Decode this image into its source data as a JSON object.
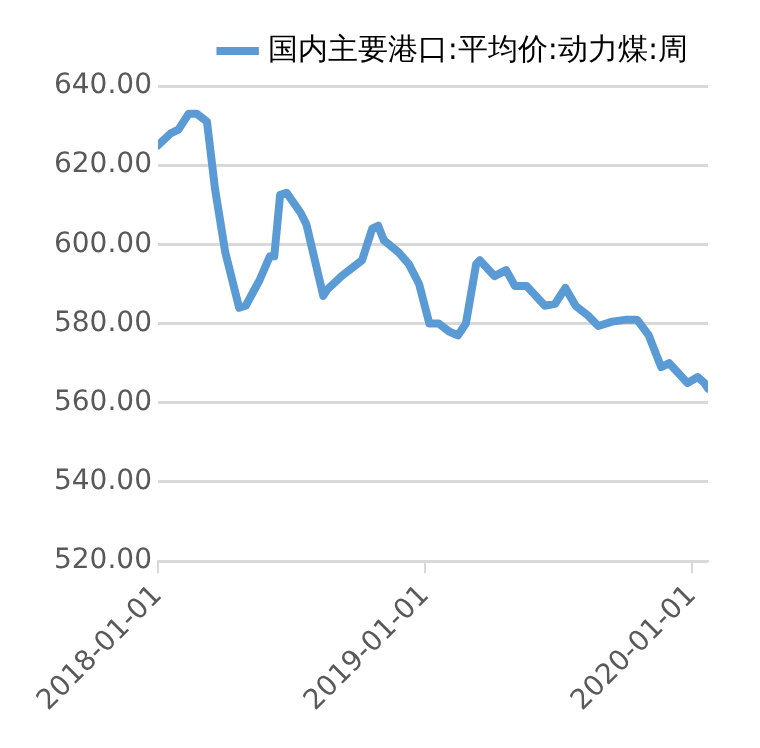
{
  "chart_data": {
    "type": "line",
    "x": [
      "2018-01-01",
      "2018-01-18",
      "2018-01-29",
      "2018-02-12",
      "2018-02-23",
      "2018-03-09",
      "2018-03-20",
      "2018-04-03",
      "2018-04-22",
      "2018-05-01",
      "2018-05-20",
      "2018-06-03",
      "2018-06-09",
      "2018-06-17",
      "2018-06-26",
      "2018-07-15",
      "2018-07-23",
      "2018-08-15",
      "2018-08-20",
      "2018-09-09",
      "2018-10-07",
      "2018-10-21",
      "2018-10-29",
      "2018-11-06",
      "2018-11-26",
      "2018-12-10",
      "2018-12-24",
      "2019-01-07",
      "2019-01-20",
      "2019-02-03",
      "2019-02-15",
      "2019-02-26",
      "2019-03-12",
      "2019-03-17",
      "2019-04-06",
      "2019-04-22",
      "2019-05-04",
      "2019-05-20",
      "2019-06-14",
      "2019-06-28",
      "2019-07-12",
      "2019-07-26",
      "2019-08-12",
      "2019-08-26",
      "2019-09-14",
      "2019-10-04",
      "2019-10-18",
      "2019-11-03",
      "2019-11-20",
      "2019-12-01",
      "2019-12-26",
      "2020-01-09",
      "2020-01-18",
      "2020-01-23"
    ],
    "series": [
      {
        "name": "国内主要港口:平均价:动力煤:周",
        "color": "#5b9bd5",
        "values": [
          625,
          628,
          629,
          633,
          633,
          631,
          614,
          598,
          584,
          584.5,
          591,
          597,
          597,
          612.5,
          613,
          608,
          605,
          587,
          588.5,
          592,
          596,
          604,
          604.7,
          601,
          598,
          595,
          590,
          580,
          580,
          578,
          577,
          580,
          595,
          596,
          592,
          593.5,
          589.5,
          589.5,
          584.5,
          585,
          589,
          584.5,
          582,
          579.4,
          580.5,
          581,
          581,
          577,
          569,
          570,
          565,
          566.5,
          565,
          563.6
        ]
      }
    ],
    "xlim": [
      "2018-01-01",
      "2020-01-23"
    ],
    "xticks": [
      {
        "value": "2018-01-01",
        "label": "2018-01-01"
      },
      {
        "value": "2019-01-01",
        "label": "2019-01-01"
      },
      {
        "value": "2020-01-01",
        "label": "2020-01-01"
      }
    ],
    "ylim": [
      520,
      640
    ],
    "yticks": [
      {
        "value": 520,
        "label": "520.00"
      },
      {
        "value": 540,
        "label": "540.00"
      },
      {
        "value": 560,
        "label": "560.00"
      },
      {
        "value": 580,
        "label": "580.00"
      },
      {
        "value": 600,
        "label": "600.00"
      },
      {
        "value": 620,
        "label": "620.00"
      },
      {
        "value": 640,
        "label": "640.00"
      }
    ],
    "grid": "y",
    "legend": "top",
    "marker": "none",
    "line_style": "solid"
  }
}
